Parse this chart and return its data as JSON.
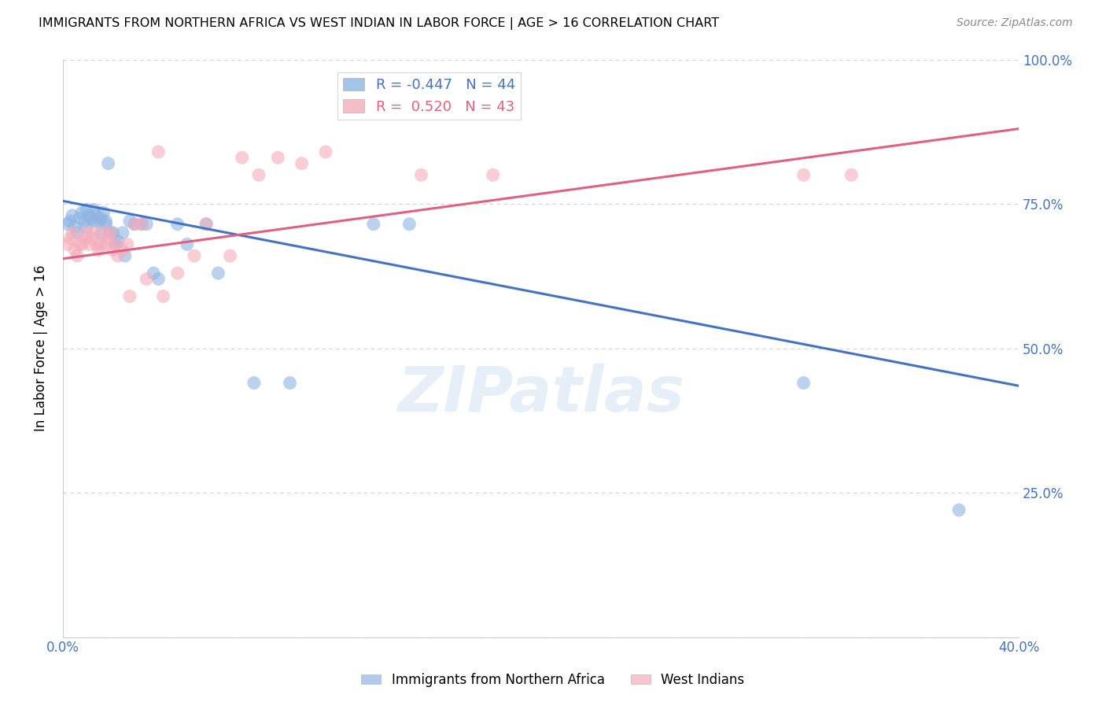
{
  "title": "IMMIGRANTS FROM NORTHERN AFRICA VS WEST INDIAN IN LABOR FORCE | AGE > 16 CORRELATION CHART",
  "source": "Source: ZipAtlas.com",
  "ylabel": "In Labor Force | Age > 16",
  "x_tick_labels": [
    "0.0%",
    "",
    "",
    "",
    "",
    "",
    "",
    "",
    "40.0%"
  ],
  "y_ticks": [
    0.0,
    0.25,
    0.5,
    0.75,
    1.0
  ],
  "y_tick_labels": [
    "",
    "25.0%",
    "50.0%",
    "75.0%",
    "100.0%"
  ],
  "xlim": [
    0.0,
    0.4
  ],
  "ylim": [
    0.0,
    1.0
  ],
  "blue_color": "#8DB4E2",
  "pink_color": "#F4ACBB",
  "blue_line_color": "#4472C4",
  "pink_line_color": "#E06080",
  "legend_R_blue": "-0.447",
  "legend_N_blue": "44",
  "legend_R_pink": "0.520",
  "legend_N_pink": "43",
  "watermark": "ZIPatlas",
  "legend_label_blue": "Immigrants from Northern Africa",
  "legend_label_pink": "West Indians",
  "blue_x": [
    0.002,
    0.003,
    0.004,
    0.005,
    0.006,
    0.007,
    0.008,
    0.009,
    0.01,
    0.01,
    0.011,
    0.012,
    0.013,
    0.013,
    0.014,
    0.015,
    0.016,
    0.016,
    0.017,
    0.018,
    0.018,
    0.019,
    0.02,
    0.021,
    0.022,
    0.023,
    0.025,
    0.026,
    0.028,
    0.03,
    0.033,
    0.035,
    0.038,
    0.04,
    0.048,
    0.052,
    0.06,
    0.065,
    0.08,
    0.095,
    0.13,
    0.145,
    0.31,
    0.375
  ],
  "blue_y": [
    0.715,
    0.72,
    0.73,
    0.71,
    0.7,
    0.725,
    0.735,
    0.72,
    0.74,
    0.71,
    0.73,
    0.725,
    0.74,
    0.72,
    0.73,
    0.72,
    0.725,
    0.7,
    0.735,
    0.715,
    0.72,
    0.82,
    0.7,
    0.7,
    0.68,
    0.685,
    0.7,
    0.66,
    0.72,
    0.715,
    0.715,
    0.715,
    0.63,
    0.62,
    0.715,
    0.68,
    0.715,
    0.63,
    0.44,
    0.44,
    0.715,
    0.715,
    0.44,
    0.22
  ],
  "pink_x": [
    0.002,
    0.003,
    0.004,
    0.005,
    0.006,
    0.007,
    0.008,
    0.009,
    0.01,
    0.011,
    0.012,
    0.013,
    0.014,
    0.015,
    0.016,
    0.017,
    0.018,
    0.019,
    0.02,
    0.021,
    0.022,
    0.023,
    0.025,
    0.027,
    0.028,
    0.03,
    0.033,
    0.035,
    0.04,
    0.042,
    0.048,
    0.055,
    0.06,
    0.07,
    0.075,
    0.082,
    0.09,
    0.1,
    0.11,
    0.15,
    0.18,
    0.31,
    0.33
  ],
  "pink_y": [
    0.68,
    0.69,
    0.7,
    0.67,
    0.66,
    0.68,
    0.68,
    0.69,
    0.7,
    0.68,
    0.69,
    0.7,
    0.68,
    0.67,
    0.68,
    0.7,
    0.68,
    0.69,
    0.7,
    0.67,
    0.68,
    0.66,
    0.67,
    0.68,
    0.59,
    0.715,
    0.715,
    0.62,
    0.84,
    0.59,
    0.63,
    0.66,
    0.715,
    0.66,
    0.83,
    0.8,
    0.83,
    0.82,
    0.84,
    0.8,
    0.8,
    0.8,
    0.8
  ],
  "blue_line_x0": 0.0,
  "blue_line_x1": 0.4,
  "blue_line_y0": 0.755,
  "blue_line_y1": 0.435,
  "pink_line_x0": 0.0,
  "pink_line_x1": 0.4,
  "pink_line_y0": 0.655,
  "pink_line_y1": 0.88
}
